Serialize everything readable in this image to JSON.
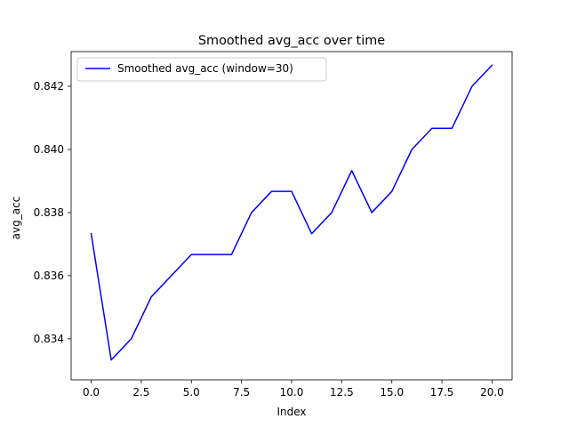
{
  "chart_data": {
    "type": "line",
    "title": "Smoothed avg_acc over time",
    "xlabel": "Index",
    "ylabel": "avg_acc",
    "xlim": [
      -1.0,
      21.0
    ],
    "ylim": [
      0.8327,
      0.8431
    ],
    "xticks": [
      0.0,
      2.5,
      5.0,
      7.5,
      10.0,
      12.5,
      15.0,
      17.5,
      20.0
    ],
    "xtick_labels": [
      "0.0",
      "2.5",
      "5.0",
      "7.5",
      "10.0",
      "12.5",
      "15.0",
      "17.5",
      "20.0"
    ],
    "yticks": [
      0.834,
      0.836,
      0.838,
      0.84,
      0.842
    ],
    "ytick_labels": [
      "0.834",
      "0.836",
      "0.838",
      "0.840",
      "0.842"
    ],
    "grid": false,
    "legend_position": "upper left",
    "series": [
      {
        "name": "Smoothed avg_acc (window=30)",
        "color": "#0000ff",
        "x": [
          0,
          1,
          2,
          3,
          4,
          5,
          6,
          7,
          8,
          9,
          10,
          11,
          12,
          13,
          14,
          15,
          16,
          17,
          18,
          19,
          20
        ],
        "y": [
          0.83733,
          0.83333,
          0.834,
          0.83533,
          0.836,
          0.83667,
          0.83667,
          0.83667,
          0.838,
          0.83867,
          0.83867,
          0.83733,
          0.838,
          0.83933,
          0.838,
          0.83867,
          0.84,
          0.84067,
          0.84067,
          0.842,
          0.84267
        ]
      }
    ]
  }
}
